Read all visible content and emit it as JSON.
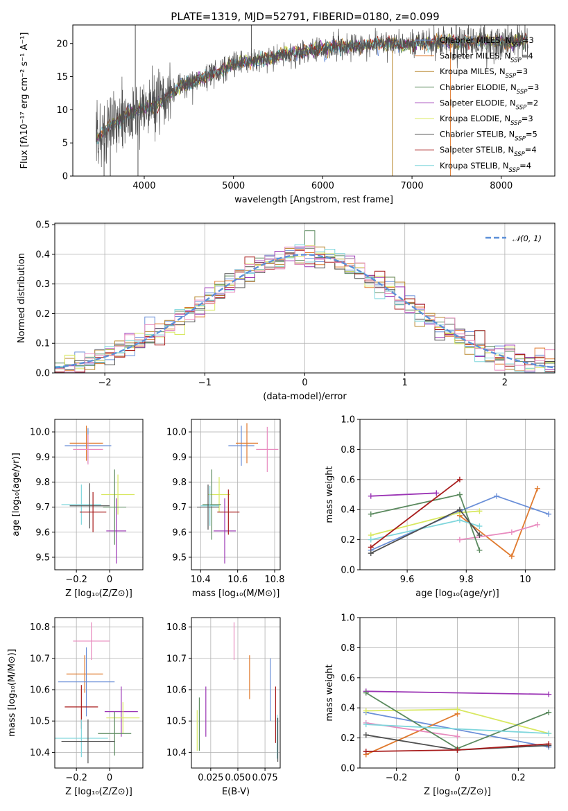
{
  "figure": {
    "title": "PLATE=1319, MJD=52791, FIBERID=0180, z=0.099"
  },
  "colors": {
    "Chabrier MILES": "#6a8fd8",
    "Salpeter MILES": "#e07a2e",
    "Kroupa MILES": "#b8862c",
    "Chabrier ELODIE": "#5b8a5f",
    "Salpeter ELODIE": "#9b35b5",
    "Kroupa ELODIE": "#d8e860",
    "Chabrier STELIB": "#505050",
    "Salpeter STELIB": "#a81c1c",
    "Kroupa STELIB": "#7fd6dc",
    "pink": "#e88bbf",
    "normal": "#5b8fd8",
    "data": "#808080"
  },
  "chart_data": [
    {
      "id": "spectrum",
      "type": "line",
      "title": "PLATE=1319, MJD=52791, FIBERID=0180, z=0.099",
      "xlabel": "wavelength [Angstrom, rest frame]",
      "ylabel": "Flux [fλ10⁻¹⁷ erg cm⁻² s⁻¹ A⁻¹]",
      "xlim": [
        3200,
        8600
      ],
      "ylim": [
        0,
        22.8
      ],
      "xticks": [
        4000,
        5000,
        6000,
        7000,
        8000
      ],
      "yticks": [
        0,
        5,
        10,
        15,
        20
      ],
      "grid": false,
      "legend_position": "top-right",
      "continuum": {
        "x": [
          3460,
          3600,
          3800,
          4000,
          4200,
          4400,
          4600,
          4800,
          5000,
          5200,
          5400,
          5600,
          5800,
          6000,
          6200,
          6400,
          6600,
          6800,
          7000,
          7200,
          7400,
          7600,
          7800,
          8000,
          8100,
          8300
        ],
        "y": [
          5.5,
          7.5,
          9.2,
          10.2,
          11.2,
          13.5,
          14.5,
          15.5,
          16.8,
          17.4,
          17.8,
          18.4,
          18.8,
          19.2,
          19.6,
          19.6,
          19.9,
          20.0,
          20.0,
          20.2,
          20.2,
          20.2,
          20.3,
          20.2,
          20.3,
          20.5
        ]
      },
      "series": [
        {
          "name": "Chabrier MILES, N_SSP=3"
        },
        {
          "name": "Salpeter MILES, N_SSP=4"
        },
        {
          "name": "Kroupa MILES, N_SSP=3"
        },
        {
          "name": "Chabrier ELODIE, N_SSP=3"
        },
        {
          "name": "Salpeter ELODIE, N_SSP=2"
        },
        {
          "name": "Kroupa ELODIE, N_SSP=3"
        },
        {
          "name": "Chabrier STELIB, N_SSP=5"
        },
        {
          "name": "Salpeter STELIB, N_SSP=4"
        },
        {
          "name": "Kroupa STELIB, N_SSP=4"
        }
      ]
    },
    {
      "id": "residuals",
      "type": "bar",
      "xlabel": "(data-model)/error",
      "ylabel": "Normed distribution",
      "xlim": [
        -2.5,
        2.5
      ],
      "ylim": [
        0,
        0.505
      ],
      "xticks": [
        -2,
        -1,
        0,
        1,
        2
      ],
      "yticks": [
        0.0,
        0.1,
        0.2,
        0.3,
        0.4,
        0.5
      ],
      "grid": true,
      "legend_position": "top-right",
      "legend": "𝒩(0, 1)",
      "bin_width": 0.1,
      "bin_start": -2.5,
      "max_outlier": 0.48
    },
    {
      "id": "age-vs-metallicity",
      "type": "scatter",
      "xlabel": "Z [log₁₀(Z/Z⊙)]",
      "ylabel": "age  [log₁₀(age/yr)]",
      "xlim": [
        -0.33,
        0.2
      ],
      "ylim": [
        9.45,
        10.05
      ],
      "xticks": [
        -0.2,
        0.0
      ],
      "yticks": [
        9.5,
        9.6,
        9.7,
        9.8,
        9.9,
        10.0
      ],
      "grid": true,
      "points": [
        {
          "c": "#6a8fd8",
          "x": -0.13,
          "y": 9.945,
          "dx": 0.14,
          "dy": 0.07
        },
        {
          "c": "#e07a2e",
          "x": -0.14,
          "y": 9.955,
          "dx": 0.1,
          "dy": 0.07
        },
        {
          "c": "#e88bbf",
          "x": -0.13,
          "y": 9.93,
          "dx": 0.09,
          "dy": 0.06
        },
        {
          "c": "#d8e860",
          "x": 0.05,
          "y": 9.75,
          "dx": 0.1,
          "dy": 0.08
        },
        {
          "c": "#9b35b5",
          "x": 0.04,
          "y": 9.605,
          "dx": 0.06,
          "dy": 0.13
        },
        {
          "c": "#5b8a5f",
          "x": 0.03,
          "y": 9.7,
          "dx": 0.07,
          "dy": 0.15
        },
        {
          "c": "#7fd6dc",
          "x": -0.17,
          "y": 9.71,
          "dx": 0.12,
          "dy": 0.08
        },
        {
          "c": "#505050",
          "x": -0.12,
          "y": 9.705,
          "dx": 0.12,
          "dy": 0.09
        },
        {
          "c": "#a81c1c",
          "x": -0.1,
          "y": 9.68,
          "dx": 0.08,
          "dy": 0.08
        }
      ]
    },
    {
      "id": "age-vs-mass",
      "type": "scatter",
      "xlabel": "mass [log₁₀(M/M⊙)]",
      "ylabel": "",
      "xlim": [
        10.35,
        10.83
      ],
      "ylim": [
        9.45,
        10.05
      ],
      "xticks": [
        10.4,
        10.6,
        10.8
      ],
      "yticks": [
        9.5,
        9.6,
        9.7,
        9.8,
        9.9,
        10.0
      ],
      "grid": true,
      "points": [
        {
          "c": "#6a8fd8",
          "x": 10.62,
          "y": 9.945,
          "dx": 0.07,
          "dy": 0.08
        },
        {
          "c": "#e07a2e",
          "x": 10.65,
          "y": 9.955,
          "dx": 0.06,
          "dy": 0.08
        },
        {
          "c": "#e88bbf",
          "x": 10.76,
          "y": 9.93,
          "dx": 0.06,
          "dy": 0.09
        },
        {
          "c": "#d8e860",
          "x": 10.5,
          "y": 9.75,
          "dx": 0.06,
          "dy": 0.07
        },
        {
          "c": "#9b35b5",
          "x": 10.53,
          "y": 9.605,
          "dx": 0.06,
          "dy": 0.13
        },
        {
          "c": "#5b8a5f",
          "x": 10.46,
          "y": 9.71,
          "dx": 0.05,
          "dy": 0.14
        },
        {
          "c": "#7fd6dc",
          "x": 10.45,
          "y": 9.705,
          "dx": 0.05,
          "dy": 0.08
        },
        {
          "c": "#505050",
          "x": 10.44,
          "y": 9.7,
          "dx": 0.06,
          "dy": 0.09
        },
        {
          "c": "#a81c1c",
          "x": 10.55,
          "y": 9.68,
          "dx": 0.06,
          "dy": 0.09
        }
      ]
    },
    {
      "id": "weight-vs-age",
      "type": "line",
      "xlabel": "age  [log₁₀(age/yr)]",
      "ylabel": "mass weight",
      "xlim": [
        9.44,
        10.1
      ],
      "ylim": [
        0,
        1.0
      ],
      "xticks": [
        9.6,
        9.8,
        10.0
      ],
      "yticks": [
        0.0,
        0.2,
        0.4,
        0.6,
        0.8,
        1.0
      ],
      "grid": true,
      "series": [
        {
          "c": "#6a8fd8",
          "x": [
            9.477,
            9.778,
            9.903,
            10.079
          ],
          "y": [
            0.13,
            0.39,
            0.49,
            0.37
          ]
        },
        {
          "c": "#e07a2e",
          "x": [
            9.778,
            9.954,
            10.041
          ],
          "y": [
            0.36,
            0.09,
            0.54
          ]
        },
        {
          "c": "#e88bbf",
          "x": [
            9.778,
            9.954,
            10.041
          ],
          "y": [
            0.2,
            0.25,
            0.3
          ]
        },
        {
          "c": "#d8e860",
          "x": [
            9.477,
            9.778,
            9.845
          ],
          "y": [
            0.23,
            0.38,
            0.39
          ]
        },
        {
          "c": "#9b35b5",
          "x": [
            9.477,
            9.699
          ],
          "y": [
            0.49,
            0.51
          ]
        },
        {
          "c": "#5b8a5f",
          "x": [
            9.477,
            9.778,
            9.845
          ],
          "y": [
            0.37,
            0.5,
            0.13
          ]
        },
        {
          "c": "#7fd6dc",
          "x": [
            9.477,
            9.778,
            9.845
          ],
          "y": [
            0.2,
            0.33,
            0.29
          ]
        },
        {
          "c": "#505050",
          "x": [
            9.477,
            9.778,
            9.845
          ],
          "y": [
            0.11,
            0.4,
            0.23
          ]
        },
        {
          "c": "#a81c1c",
          "x": [
            9.477,
            9.778
          ],
          "y": [
            0.15,
            0.6
          ]
        }
      ]
    },
    {
      "id": "mass-vs-metallicity",
      "type": "scatter",
      "xlabel": "Z [log₁₀(Z/Z⊙)]",
      "ylabel": "mass [log₁₀(M/M⊙)]",
      "xlim": [
        -0.33,
        0.2
      ],
      "ylim": [
        10.35,
        10.83
      ],
      "xticks": [
        -0.2,
        0.0
      ],
      "yticks": [
        10.4,
        10.5,
        10.6,
        10.7,
        10.8
      ],
      "grid": true,
      "points": [
        {
          "c": "#e88bbf",
          "x": -0.11,
          "y": 10.755,
          "dx": 0.11,
          "dy": 0.06
        },
        {
          "c": "#e07a2e",
          "x": -0.15,
          "y": 10.65,
          "dx": 0.11,
          "dy": 0.06
        },
        {
          "c": "#6a8fd8",
          "x": -0.14,
          "y": 10.625,
          "dx": 0.17,
          "dy": 0.11
        },
        {
          "c": "#a81c1c",
          "x": -0.17,
          "y": 10.545,
          "dx": 0.1,
          "dy": 0.07
        },
        {
          "c": "#9b35b5",
          "x": 0.07,
          "y": 10.53,
          "dx": 0.1,
          "dy": 0.08
        },
        {
          "c": "#d8e860",
          "x": 0.08,
          "y": 10.51,
          "dx": 0.1,
          "dy": 0.05
        },
        {
          "c": "#5b8a5f",
          "x": 0.03,
          "y": 10.46,
          "dx": 0.1,
          "dy": 0.07
        },
        {
          "c": "#7fd6dc",
          "x": -0.17,
          "y": 10.445,
          "dx": 0.16,
          "dy": 0.06
        },
        {
          "c": "#505050",
          "x": -0.13,
          "y": 10.435,
          "dx": 0.16,
          "dy": 0.07
        }
      ]
    },
    {
      "id": "mass-vs-ebv",
      "type": "scatter",
      "xlabel": "E(B-V)",
      "ylabel": "",
      "xlim": [
        0.0072,
        0.089
      ],
      "ylim": [
        10.35,
        10.83
      ],
      "xticks": [
        0.025,
        0.05,
        0.075
      ],
      "xticklabels": [
        "0.025",
        "0.050",
        "0.075"
      ],
      "yticks": [
        10.4,
        10.5,
        10.6,
        10.7,
        10.8
      ],
      "grid": true,
      "points": [
        {
          "c": "#d8e860",
          "x": 0.0125,
          "y": 10.47,
          "dx": 0,
          "dy": 0.065
        },
        {
          "c": "#5b8a5f",
          "x": 0.0145,
          "y": 10.49,
          "dx": 0,
          "dy": 0.085
        },
        {
          "c": "#9b35b5",
          "x": 0.0205,
          "y": 10.53,
          "dx": 0,
          "dy": 0.08
        },
        {
          "c": "#e88bbf",
          "x": 0.0465,
          "y": 10.755,
          "dx": 0,
          "dy": 0.06
        },
        {
          "c": "#e07a2e",
          "x": 0.0608,
          "y": 10.64,
          "dx": 0,
          "dy": 0.07
        },
        {
          "c": "#6a8fd8",
          "x": 0.08,
          "y": 10.6,
          "dx": 0,
          "dy": 0.1
        },
        {
          "c": "#a81c1c",
          "x": 0.0848,
          "y": 10.52,
          "dx": 0,
          "dy": 0.09
        },
        {
          "c": "#7fd6dc",
          "x": 0.0862,
          "y": 10.45,
          "dx": 0,
          "dy": 0.07
        },
        {
          "c": "#505050",
          "x": 0.0868,
          "y": 10.44,
          "dx": 0,
          "dy": 0.07
        }
      ]
    },
    {
      "id": "weight-vs-metallicity",
      "type": "line",
      "xlabel": "Z [log₁₀(Z/Z⊙)]",
      "ylabel": "mass weight",
      "xlim": [
        -0.32,
        0.32
      ],
      "ylim": [
        0,
        1.0
      ],
      "xticks": [
        -0.2,
        0.0,
        0.2
      ],
      "yticks": [
        0.0,
        0.2,
        0.4,
        0.6,
        0.8,
        1.0
      ],
      "grid": true,
      "series": [
        {
          "c": "#6a8fd8",
          "x": [
            -0.3,
            0.3
          ],
          "y": [
            0.37,
            0.14
          ]
        },
        {
          "c": "#e07a2e",
          "x": [
            -0.3,
            0.0
          ],
          "y": [
            0.09,
            0.36
          ]
        },
        {
          "c": "#e88bbf",
          "x": [
            -0.3,
            0.0
          ],
          "y": [
            0.3,
            0.21
          ]
        },
        {
          "c": "#d8e860",
          "x": [
            -0.3,
            0.0,
            0.3
          ],
          "y": [
            0.38,
            0.39,
            0.23
          ]
        },
        {
          "c": "#9b35b5",
          "x": [
            -0.3,
            0.3
          ],
          "y": [
            0.51,
            0.49
          ]
        },
        {
          "c": "#5b8a5f",
          "x": [
            -0.3,
            0.0,
            0.3
          ],
          "y": [
            0.5,
            0.13,
            0.37
          ]
        },
        {
          "c": "#7fd6dc",
          "x": [
            -0.3,
            0.3
          ],
          "y": [
            0.29,
            0.23
          ]
        },
        {
          "c": "#505050",
          "x": [
            -0.3,
            0.0,
            0.3
          ],
          "y": [
            0.22,
            0.12,
            0.15
          ]
        },
        {
          "c": "#a81c1c",
          "x": [
            -0.3,
            0.0,
            0.3
          ],
          "y": [
            0.11,
            0.12,
            0.16
          ]
        }
      ]
    }
  ]
}
